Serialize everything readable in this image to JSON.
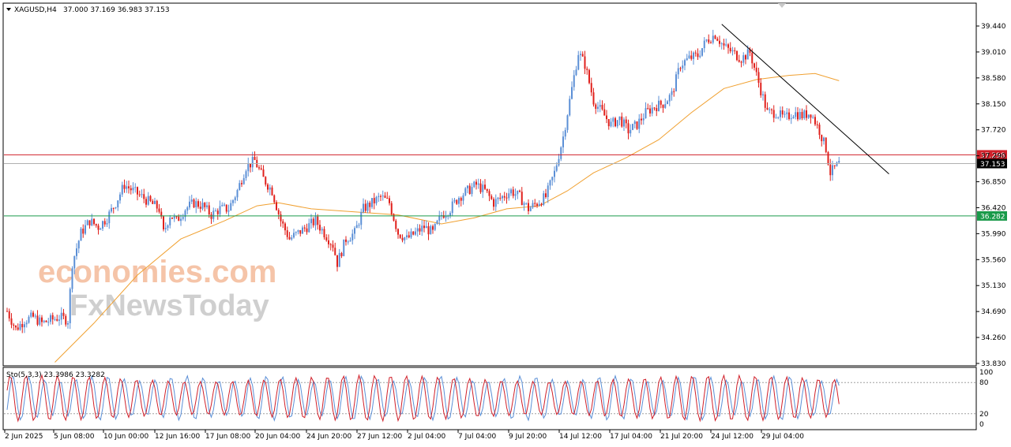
{
  "header": {
    "symbol_label": "XAGUSD,H4",
    "ohlc_label": "37.000 37.169 36.983 37.153"
  },
  "watermark": {
    "line1": "economies.com",
    "line2": "FxNewsToday"
  },
  "colors": {
    "bull": "#5b8fd6",
    "bear": "#e0201c",
    "ma": "#f0a030",
    "resistance": "#d0202a",
    "support": "#1a9a4a",
    "trendline": "#000000",
    "stoch_main": "#d0202a",
    "stoch_signal": "#5b8fd6",
    "watermark1": "#f5c4a8",
    "watermark2": "#c8c8c8"
  },
  "chart_data": {
    "type": "candlestick",
    "ylim": [
      33.83,
      39.6
    ],
    "y_ticks": [
      "39.440",
      "39.010",
      "38.580",
      "38.150",
      "37.720",
      "37.290",
      "36.850",
      "36.420",
      "35.990",
      "35.560",
      "35.130",
      "34.690",
      "34.260",
      "33.830"
    ],
    "x_ticks": [
      "2 Jun 2025",
      "5 Jun 08:00",
      "10 Jun 00:00",
      "12 Jun 16:00",
      "17 Jun 08:00",
      "20 Jun 04:00",
      "24 Jun 20:00",
      "27 Jun 12:00",
      "2 Jul 04:00",
      "7 Jul 04:00",
      "9 Jul 20:00",
      "14 Jul 12:00",
      "17 Jul 04:00",
      "21 Jul 20:00",
      "24 Jul 12:00",
      "29 Jul 04:00"
    ],
    "close_path": [
      [
        0,
        34.7
      ],
      [
        4,
        34.4
      ],
      [
        8,
        34.55
      ],
      [
        12,
        34.6
      ],
      [
        16,
        34.5
      ],
      [
        20,
        34.55
      ],
      [
        24,
        34.6
      ],
      [
        28,
        34.55
      ],
      [
        30,
        35.5
      ],
      [
        34,
        36.0
      ],
      [
        38,
        36.2
      ],
      [
        42,
        36.1
      ],
      [
        46,
        36.25
      ],
      [
        50,
        36.5
      ],
      [
        54,
        36.8
      ],
      [
        58,
        36.7
      ],
      [
        62,
        36.6
      ],
      [
        66,
        36.5
      ],
      [
        70,
        36.4
      ],
      [
        72,
        36.0
      ],
      [
        75,
        36.3
      ],
      [
        78,
        36.2
      ],
      [
        82,
        36.4
      ],
      [
        86,
        36.5
      ],
      [
        90,
        36.45
      ],
      [
        94,
        36.3
      ],
      [
        98,
        36.4
      ],
      [
        102,
        36.4
      ],
      [
        106,
        36.7
      ],
      [
        110,
        37.1
      ],
      [
        114,
        37.2
      ],
      [
        118,
        36.9
      ],
      [
        122,
        36.7
      ],
      [
        126,
        36.2
      ],
      [
        130,
        35.9
      ],
      [
        134,
        36.0
      ],
      [
        138,
        36.1
      ],
      [
        142,
        36.2
      ],
      [
        146,
        36.0
      ],
      [
        150,
        35.8
      ],
      [
        152,
        35.5
      ],
      [
        156,
        35.9
      ],
      [
        160,
        36.0
      ],
      [
        164,
        36.4
      ],
      [
        168,
        36.5
      ],
      [
        172,
        36.6
      ],
      [
        176,
        36.5
      ],
      [
        180,
        36.0
      ],
      [
        184,
        35.9
      ],
      [
        188,
        36.0
      ],
      [
        192,
        36.1
      ],
      [
        196,
        36.0
      ],
      [
        200,
        36.3
      ],
      [
        204,
        36.4
      ],
      [
        208,
        36.6
      ],
      [
        212,
        36.7
      ],
      [
        216,
        36.8
      ],
      [
        220,
        36.7
      ],
      [
        224,
        36.5
      ],
      [
        228,
        36.6
      ],
      [
        232,
        36.7
      ],
      [
        236,
        36.6
      ],
      [
        240,
        36.4
      ],
      [
        244,
        36.5
      ],
      [
        248,
        36.6
      ],
      [
        252,
        37.0
      ],
      [
        256,
        37.6
      ],
      [
        260,
        38.4
      ],
      [
        263,
        39.0
      ],
      [
        266,
        38.8
      ],
      [
        270,
        38.2
      ],
      [
        274,
        38.0
      ],
      [
        278,
        37.8
      ],
      [
        282,
        37.9
      ],
      [
        286,
        37.7
      ],
      [
        290,
        37.8
      ],
      [
        294,
        38.0
      ],
      [
        298,
        38.1
      ],
      [
        302,
        38.15
      ],
      [
        306,
        38.3
      ],
      [
        310,
        38.8
      ],
      [
        314,
        38.9
      ],
      [
        318,
        38.95
      ],
      [
        322,
        39.2
      ],
      [
        326,
        39.3
      ],
      [
        330,
        39.1
      ],
      [
        334,
        39.0
      ],
      [
        338,
        38.9
      ],
      [
        342,
        39.0
      ],
      [
        346,
        38.5
      ],
      [
        350,
        38.0
      ],
      [
        354,
        38.0
      ],
      [
        358,
        37.9
      ],
      [
        362,
        38.0
      ],
      [
        366,
        37.95
      ],
      [
        370,
        38.0
      ],
      [
        374,
        37.7
      ],
      [
        377,
        37.4
      ],
      [
        379,
        37.0
      ],
      [
        383,
        37.15
      ]
    ],
    "ma_path": [
      [
        22,
        33.85
      ],
      [
        40,
        34.5
      ],
      [
        60,
        35.3
      ],
      [
        80,
        35.9
      ],
      [
        100,
        36.2
      ],
      [
        115,
        36.45
      ],
      [
        125,
        36.5
      ],
      [
        140,
        36.4
      ],
      [
        160,
        36.35
      ],
      [
        180,
        36.3
      ],
      [
        200,
        36.15
      ],
      [
        215,
        36.25
      ],
      [
        230,
        36.4
      ],
      [
        245,
        36.45
      ],
      [
        258,
        36.7
      ],
      [
        270,
        37.0
      ],
      [
        285,
        37.25
      ],
      [
        300,
        37.55
      ],
      [
        315,
        38.0
      ],
      [
        330,
        38.4
      ],
      [
        345,
        38.55
      ],
      [
        360,
        38.62
      ],
      [
        372,
        38.65
      ],
      [
        383,
        38.53
      ]
    ],
    "resistance": {
      "value": 37.298,
      "label": "37.298"
    },
    "current": {
      "value": 37.153,
      "label": "37.153"
    },
    "support": {
      "value": 36.282,
      "label": "36.282"
    },
    "trendline": [
      [
        329,
        39.47
      ],
      [
        406,
        36.98
      ]
    ],
    "stochastic": {
      "label": "Sto(5,3,3) 23.3986 23.3282",
      "ylim": [
        0,
        100
      ],
      "levels": [
        80,
        20
      ],
      "y_ticks": [
        "100",
        "80",
        "20",
        "0"
      ]
    }
  }
}
